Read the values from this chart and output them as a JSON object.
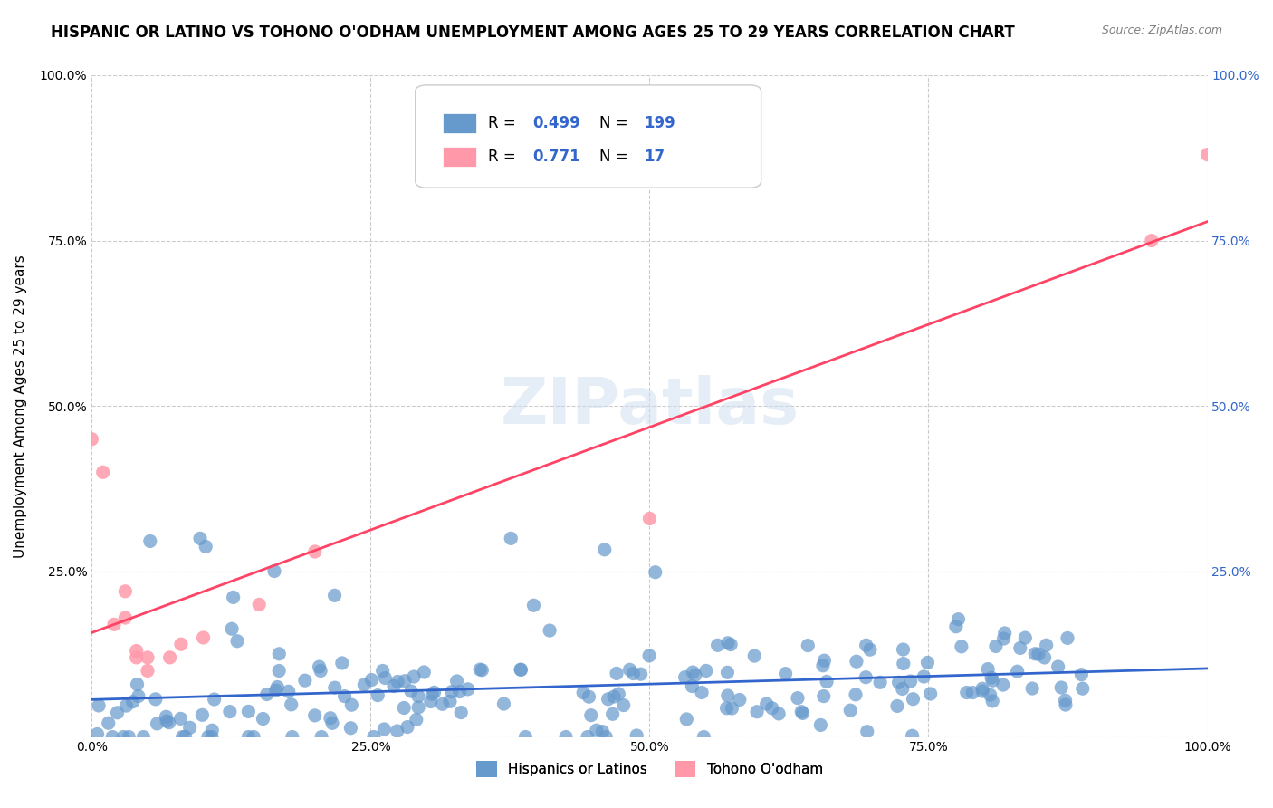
{
  "title": "HISPANIC OR LATINO VS TOHONO O'ODHAM UNEMPLOYMENT AMONG AGES 25 TO 29 YEARS CORRELATION CHART",
  "source": "Source: ZipAtlas.com",
  "ylabel": "Unemployment Among Ages 25 to 29 years",
  "xlabel": "",
  "xlim": [
    0.0,
    1.0
  ],
  "ylim": [
    0.0,
    1.0
  ],
  "xticks": [
    0.0,
    0.25,
    0.5,
    0.75,
    1.0
  ],
  "xticklabels": [
    "0.0%",
    "25.0%",
    "50.0%",
    "75.0%",
    "100.0%"
  ],
  "yticks": [
    0.0,
    0.25,
    0.5,
    0.75,
    1.0
  ],
  "yticklabels": [
    "",
    "25.0%",
    "50.0%",
    "75.0%",
    "100.0%"
  ],
  "series1": {
    "name": "Hispanics or Latinos",
    "color": "#6699CC",
    "R": 0.499,
    "N": 199,
    "line_color": "#3366CC"
  },
  "series2": {
    "name": "Tohono O'odham",
    "color": "#FF99AA",
    "R": 0.771,
    "N": 17,
    "line_color": "#FF4466"
  },
  "legend_R_color": "#3366CC",
  "legend_N_color": "#FF6600",
  "watermark": "ZIPatlas",
  "watermark_color": "#CCDDEE",
  "background_color": "#FFFFFF",
  "grid_color": "#CCCCCC",
  "grid_linestyle": "--",
  "title_fontsize": 12,
  "axis_label_fontsize": 11,
  "tick_fontsize": 10,
  "seed": 42
}
